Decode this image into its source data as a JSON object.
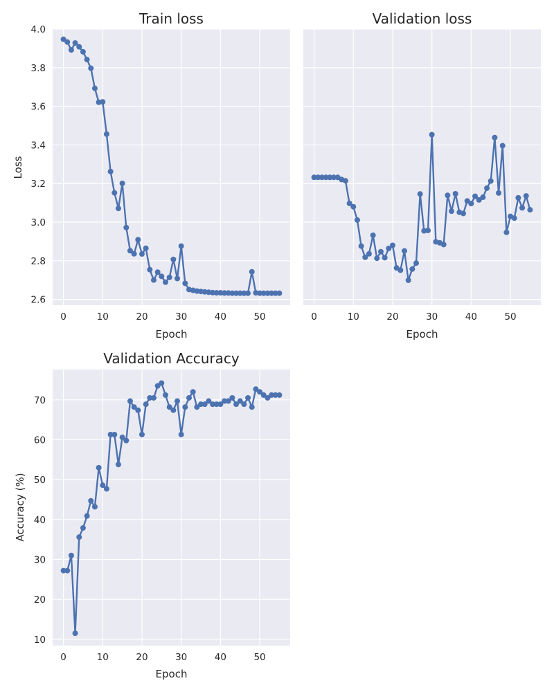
{
  "colors": {
    "plot_bg": "#EAEAF2",
    "grid": "#FFFFFF",
    "line": "#4C72B0",
    "text": "#262626"
  },
  "chart_data": [
    {
      "type": "line",
      "title": "Train loss",
      "xlabel": "Epoch",
      "ylabel": "Loss",
      "xlim": [
        -2.75,
        57.75
      ],
      "ylim": [
        2.57,
        4.0
      ],
      "xticks": [
        0,
        10,
        20,
        30,
        40,
        50
      ],
      "yticks": [
        2.6,
        2.8,
        3.0,
        3.2,
        3.4,
        3.6,
        3.8,
        4.0
      ],
      "ytick_labels": [
        "2.6",
        "2.8",
        "3.0",
        "3.2",
        "3.4",
        "3.6",
        "3.8",
        "4.0"
      ],
      "grid": true,
      "series": [
        {
          "x": [
            0,
            1,
            2,
            3,
            4,
            5,
            6,
            7,
            8,
            9,
            10,
            11,
            12,
            13,
            14,
            15,
            16,
            17,
            18,
            19,
            20,
            21,
            22,
            23,
            24,
            25,
            26,
            27,
            28,
            29,
            30,
            31,
            32,
            33,
            34,
            35,
            36,
            37,
            38,
            39,
            40,
            41,
            42,
            43,
            44,
            45,
            46,
            47,
            48,
            49,
            50,
            51,
            52,
            53,
            54,
            55
          ],
          "values": [
            3.947,
            3.933,
            3.892,
            3.928,
            3.908,
            3.882,
            3.842,
            3.797,
            3.693,
            3.621,
            3.623,
            3.456,
            3.262,
            3.152,
            3.071,
            3.201,
            2.972,
            2.852,
            2.836,
            2.909,
            2.835,
            2.865,
            2.754,
            2.7,
            2.741,
            2.719,
            2.689,
            2.714,
            2.807,
            2.708,
            2.876,
            2.683,
            2.651,
            2.647,
            2.643,
            2.641,
            2.639,
            2.637,
            2.635,
            2.634,
            2.634,
            2.633,
            2.633,
            2.632,
            2.632,
            2.632,
            2.632,
            2.632,
            2.743,
            2.634,
            2.632,
            2.632,
            2.632,
            2.632,
            2.632,
            2.632
          ]
        }
      ]
    },
    {
      "type": "line",
      "title": "Validation loss",
      "xlabel": "Epoch",
      "ylabel": "",
      "xlim": [
        -2.75,
        57.75
      ],
      "ylim": [
        2.57,
        4.0
      ],
      "xticks": [
        0,
        10,
        20,
        30,
        40,
        50
      ],
      "yticks": [
        2.6,
        2.8,
        3.0,
        3.2,
        3.4,
        3.6,
        3.8,
        4.0
      ],
      "grid": true,
      "series": [
        {
          "x": [
            0,
            1,
            2,
            3,
            4,
            5,
            6,
            7,
            8,
            9,
            10,
            11,
            12,
            13,
            14,
            15,
            16,
            17,
            18,
            19,
            20,
            21,
            22,
            23,
            24,
            25,
            26,
            27,
            28,
            29,
            30,
            31,
            32,
            33,
            34,
            35,
            36,
            37,
            38,
            39,
            40,
            41,
            42,
            43,
            44,
            45,
            46,
            47,
            48,
            49,
            50,
            51,
            52,
            53,
            54,
            55
          ],
          "values": [
            3.232,
            3.232,
            3.232,
            3.232,
            3.232,
            3.232,
            3.232,
            3.221,
            3.214,
            3.097,
            3.08,
            3.011,
            2.876,
            2.818,
            2.836,
            2.932,
            2.813,
            2.847,
            2.816,
            2.864,
            2.88,
            2.763,
            2.751,
            2.851,
            2.699,
            2.757,
            2.788,
            3.146,
            2.955,
            2.957,
            3.453,
            2.898,
            2.893,
            2.884,
            3.139,
            3.057,
            3.147,
            3.051,
            3.045,
            3.11,
            3.096,
            3.134,
            3.115,
            3.129,
            3.176,
            3.213,
            3.438,
            3.151,
            3.396,
            2.947,
            3.03,
            3.021,
            3.126,
            3.074,
            3.136,
            3.064
          ]
        }
      ]
    },
    {
      "type": "line",
      "title": "Validation Accuracy",
      "xlabel": "Epoch",
      "ylabel": "Accuracy (%)",
      "xlim": [
        -2.75,
        57.75
      ],
      "ylim": [
        8.4,
        77.6
      ],
      "xticks": [
        0,
        10,
        20,
        30,
        40,
        50
      ],
      "yticks": [
        10,
        20,
        30,
        40,
        50,
        60,
        70
      ],
      "ytick_labels": [
        "10",
        "20",
        "30",
        "40",
        "50",
        "60",
        "70"
      ],
      "grid": true,
      "series": [
        {
          "x": [
            0,
            1,
            2,
            3,
            4,
            5,
            6,
            7,
            8,
            9,
            10,
            11,
            12,
            13,
            14,
            15,
            16,
            17,
            18,
            19,
            20,
            21,
            22,
            23,
            24,
            25,
            26,
            27,
            28,
            29,
            30,
            31,
            32,
            33,
            34,
            35,
            36,
            37,
            38,
            39,
            40,
            41,
            42,
            43,
            44,
            45,
            46,
            47,
            48,
            49,
            50,
            51,
            52,
            53,
            54,
            55
          ],
          "values": [
            27.2,
            27.2,
            31.0,
            11.5,
            35.6,
            37.9,
            40.9,
            44.7,
            43.2,
            53.0,
            48.6,
            47.7,
            61.3,
            61.3,
            53.8,
            60.6,
            59.8,
            69.7,
            68.2,
            67.4,
            61.3,
            68.9,
            70.5,
            70.5,
            73.5,
            74.2,
            71.2,
            68.2,
            67.4,
            69.7,
            61.3,
            68.2,
            70.5,
            72.0,
            68.2,
            68.9,
            68.9,
            69.7,
            68.9,
            68.9,
            68.9,
            69.7,
            69.7,
            70.5,
            68.9,
            69.7,
            68.9,
            70.5,
            68.2,
            72.7,
            72.0,
            71.2,
            70.5,
            71.2,
            71.2,
            71.2
          ]
        }
      ]
    }
  ]
}
